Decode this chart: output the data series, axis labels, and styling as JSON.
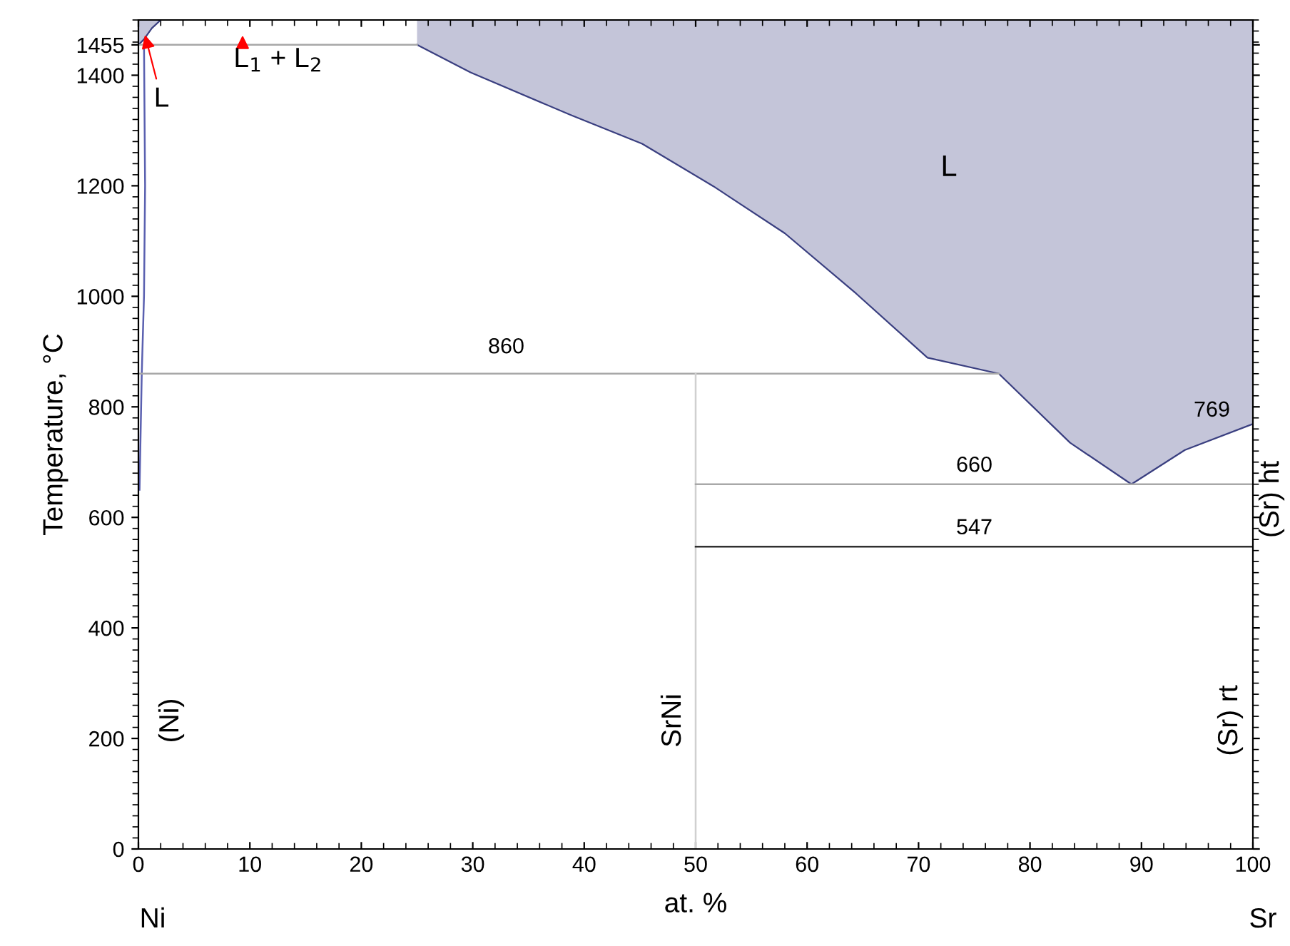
{
  "chart_data": {
    "type": "line",
    "xlabel": "at. %",
    "ylabel": "Temperature, °C",
    "xlim": [
      0,
      100
    ],
    "ylim": [
      0,
      1500
    ],
    "xticks": [
      0,
      10,
      20,
      30,
      40,
      50,
      60,
      70,
      80,
      90,
      100
    ],
    "yticks": [
      0,
      200,
      400,
      600,
      800,
      1000,
      1200,
      1400,
      {
        "value": 1455,
        "label": "1455"
      }
    ],
    "grid": false,
    "marker": "none",
    "line_style": "solid",
    "series": [
      {
        "type": "line",
        "color": "#3a3f80",
        "x": [
          25,
          29.8,
          38.8,
          45.2,
          51.6,
          58.0,
          64.4,
          70.8,
          77.2,
          83.6,
          89.1,
          93.9,
          100
        ],
        "values": [
          1455,
          1405,
          1328,
          1276,
          1199,
          1114,
          1005,
          889,
          860,
          735,
          660,
          722,
          769
        ],
        "lower": [
          1455,
          1405,
          1328,
          1276,
          1199,
          1114,
          1005,
          889,
          860,
          735,
          660,
          722,
          769
        ],
        "upper": [
          1500,
          1500,
          1500,
          1500,
          1500,
          1500,
          1500,
          1500,
          1500,
          1500,
          1500,
          1500,
          1500
        ]
      },
      {
        "type": "line",
        "color": "#3a3f80",
        "x": [
          0,
          0.5,
          1.2,
          2.0
        ],
        "values": [
          1455,
          1465,
          1485,
          1500
        ],
        "lower": [
          1455,
          1465,
          1485,
          1500
        ],
        "upper": [
          1500,
          1500,
          1500,
          1500
        ]
      },
      {
        "color": "#5a60b0",
        "x": [
          0.5,
          0.6,
          0.5,
          0.3,
          0.1
        ],
        "values": [
          1455,
          1200,
          1000,
          860,
          650
        ]
      },
      {
        "color": "#a8a8a8",
        "x": [
          0,
          25
        ],
        "values": [
          1455,
          1455
        ]
      },
      {
        "color": "#a8a8a8",
        "x": [
          0,
          77.2
        ],
        "values": [
          860,
          860
        ]
      },
      {
        "color": "#d0d0d0",
        "x": [
          50,
          50
        ],
        "values": [
          0,
          860
        ]
      },
      {
        "color": "#a8a8a8",
        "x": [
          50,
          100
        ],
        "values": [
          660,
          660
        ]
      },
      {
        "color": "#303030",
        "x": [
          50,
          100
        ],
        "values": [
          547,
          547
        ]
      }
    ],
    "annotations": [
      {
        "text": "860",
        "x": 33,
        "y": 860
      },
      {
        "text": "660",
        "x": 75,
        "y": 660
      },
      {
        "text": "547",
        "x": 75,
        "y": 547
      },
      "769",
      {
        "text": "L",
        "x": 0.5,
        "y": 1480
      },
      "L",
      "L$_{1}$ + L$_{2}$",
      "(Ni)",
      "SrNi",
      "(Sr) rt",
      "(Sr) ht",
      "Ni",
      "Sr"
    ]
  }
}
